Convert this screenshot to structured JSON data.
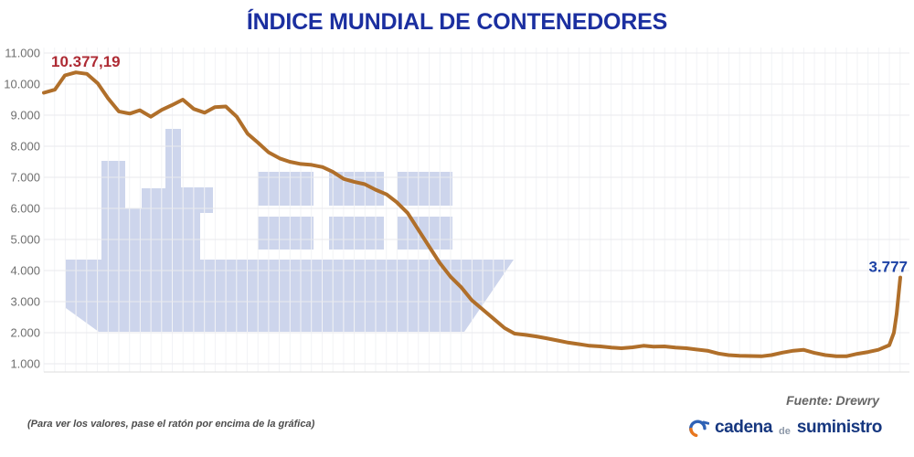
{
  "title": "ÍNDICE MUNDIAL DE CONTENEDORES",
  "chart_data": {
    "type": "line",
    "series_name": "Índice mundial de contenedores (Drewry WCI)",
    "ylim": [
      1000,
      11000
    ],
    "ytick_labels": [
      "11.000",
      "10.000",
      "9.000",
      "8.000",
      "7.000",
      "6.000",
      "5.000",
      "4.000",
      "3.000",
      "2.000",
      "1.000"
    ],
    "xlabel": "",
    "ylabel": "",
    "x_axis_labels_shown": false,
    "grid": true,
    "legend_position": "none",
    "points": [
      [
        48,
        9720
      ],
      [
        60,
        9820
      ],
      [
        71,
        10280
      ],
      [
        83,
        10377.19
      ],
      [
        95,
        10330
      ],
      [
        107,
        10020
      ],
      [
        118,
        9550
      ],
      [
        130,
        9120
      ],
      [
        142,
        9050
      ],
      [
        153,
        9160
      ],
      [
        165,
        8950
      ],
      [
        177,
        9170
      ],
      [
        188,
        9320
      ],
      [
        200,
        9500
      ],
      [
        212,
        9200
      ],
      [
        224,
        9080
      ],
      [
        235,
        9260
      ],
      [
        247,
        9280
      ],
      [
        259,
        8950
      ],
      [
        271,
        8400
      ],
      [
        282,
        8120
      ],
      [
        294,
        7800
      ],
      [
        306,
        7610
      ],
      [
        317,
        7500
      ],
      [
        329,
        7430
      ],
      [
        341,
        7400
      ],
      [
        353,
        7330
      ],
      [
        364,
        7180
      ],
      [
        376,
        6950
      ],
      [
        388,
        6850
      ],
      [
        399,
        6780
      ],
      [
        411,
        6600
      ],
      [
        423,
        6450
      ],
      [
        434,
        6200
      ],
      [
        446,
        5850
      ],
      [
        458,
        5300
      ],
      [
        470,
        4750
      ],
      [
        481,
        4250
      ],
      [
        493,
        3800
      ],
      [
        505,
        3450
      ],
      [
        516,
        3050
      ],
      [
        528,
        2750
      ],
      [
        540,
        2450
      ],
      [
        552,
        2150
      ],
      [
        563,
        1970
      ],
      [
        575,
        1930
      ],
      [
        587,
        1880
      ],
      [
        598,
        1820
      ],
      [
        610,
        1750
      ],
      [
        622,
        1680
      ],
      [
        634,
        1630
      ],
      [
        645,
        1580
      ],
      [
        657,
        1560
      ],
      [
        669,
        1520
      ],
      [
        680,
        1500
      ],
      [
        692,
        1530
      ],
      [
        704,
        1580
      ],
      [
        715,
        1550
      ],
      [
        727,
        1560
      ],
      [
        739,
        1520
      ],
      [
        751,
        1500
      ],
      [
        762,
        1460
      ],
      [
        774,
        1420
      ],
      [
        786,
        1330
      ],
      [
        797,
        1280
      ],
      [
        809,
        1260
      ],
      [
        821,
        1250
      ],
      [
        833,
        1240
      ],
      [
        844,
        1280
      ],
      [
        856,
        1360
      ],
      [
        868,
        1420
      ],
      [
        879,
        1450
      ],
      [
        891,
        1350
      ],
      [
        903,
        1280
      ],
      [
        915,
        1240
      ],
      [
        926,
        1240
      ],
      [
        938,
        1320
      ],
      [
        950,
        1380
      ],
      [
        961,
        1450
      ],
      [
        973,
        1600
      ],
      [
        978,
        2000
      ],
      [
        981,
        2600
      ],
      [
        985,
        3777
      ]
    ],
    "annotations": [
      {
        "text": "10.377,19",
        "value": 10377.19,
        "role": "peak"
      },
      {
        "text": "3.777",
        "value": 3777,
        "role": "last"
      }
    ]
  },
  "footer": {
    "note": "(Para ver los valores, pase el ratón por encima de la gráfica)",
    "source": "Fuente: Drewry"
  },
  "logo": {
    "part1": "cadena",
    "part2": "de",
    "part3": "suministro"
  },
  "colors": {
    "title": "#1b2fa0",
    "line": "#b06f2a",
    "watermark": "#cdd5ec",
    "grid_h": "#e9eaee",
    "grid_v": "#f2f3f6",
    "baseline": "#dddddd",
    "axis_text": "#6f6f6f",
    "peak_label": "#ae2b34",
    "end_label": "#1e43a6",
    "note_text": "#4c4c4c",
    "source_text": "#666666",
    "logo_navy": "#16377f",
    "logo_gray": "#8d98a8",
    "logo_blue": "#2f62b5",
    "logo_orange": "#e8761e"
  }
}
